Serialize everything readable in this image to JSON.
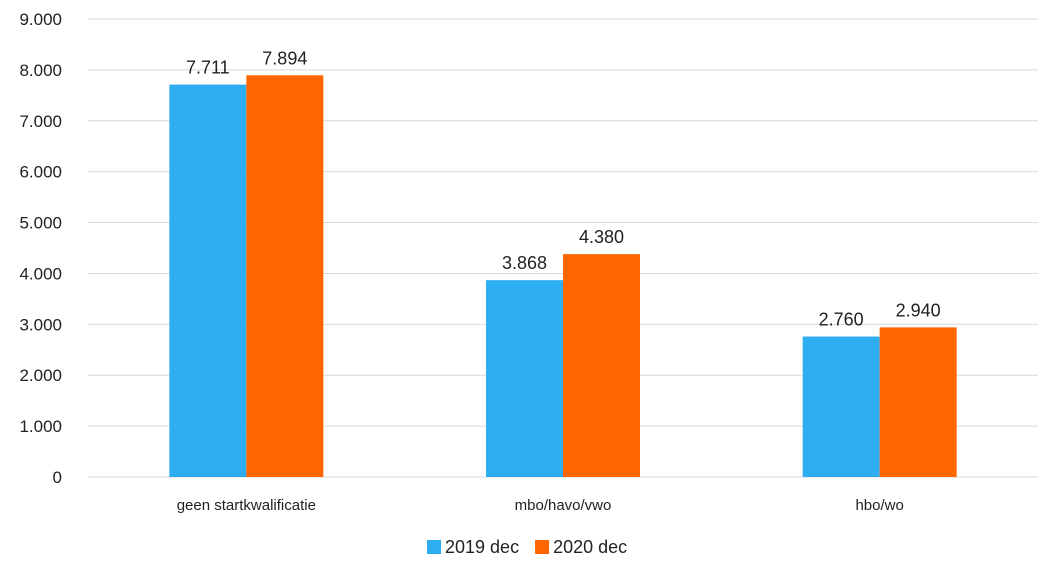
{
  "chart_data": {
    "type": "bar",
    "categories": [
      "geen startkwalificatie",
      "mbo/havo/vwo",
      "hbo/wo"
    ],
    "series": [
      {
        "name": "2019 dec",
        "values": [
          7711,
          3868,
          2760
        ],
        "labels": [
          "7.711",
          "3.868",
          "2.760"
        ],
        "color": "#2EAEF0"
      },
      {
        "name": "2020 dec",
        "values": [
          7894,
          4380,
          2940
        ],
        "labels": [
          "7.894",
          "4.380",
          "2.940"
        ],
        "color": "#FF6600"
      }
    ],
    "yticks": [
      0,
      1000,
      2000,
      3000,
      4000,
      5000,
      6000,
      7000,
      8000,
      9000
    ],
    "ytick_labels": [
      "0",
      "1.000",
      "2.000",
      "3.000",
      "4.000",
      "5.000",
      "6.000",
      "7.000",
      "8.000",
      "9.000"
    ],
    "ylim": [
      0,
      9000
    ],
    "grid": true,
    "legend_position": "bottom-center",
    "title": "",
    "xlabel": "",
    "ylabel": ""
  }
}
